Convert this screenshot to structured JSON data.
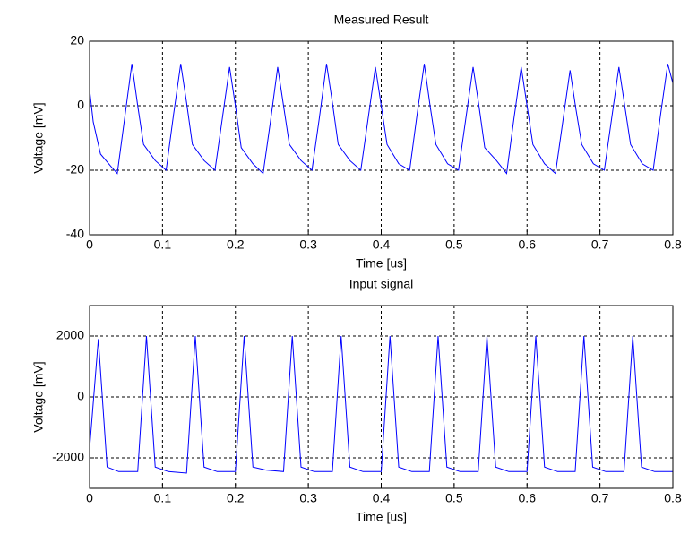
{
  "chart_data": [
    {
      "type": "line",
      "title": "Measured Result",
      "x_label": "Time [us]",
      "y_label": "Voltage [mV]",
      "color": "#0000ff",
      "grid": true,
      "xlim": [
        0,
        0.8
      ],
      "xticks": [
        0,
        0.1,
        0.2,
        0.3,
        0.4,
        0.5,
        0.6,
        0.7,
        0.8
      ],
      "ylim": [
        -40,
        20
      ],
      "yticks": [
        -40,
        -20,
        0,
        20
      ],
      "x": [
        0,
        0.005,
        0.015,
        0.03,
        0.038,
        0.048,
        0.058,
        0.066,
        0.074,
        0.09,
        0.105,
        0.115,
        0.125,
        0.133,
        0.141,
        0.157,
        0.172,
        0.182,
        0.192,
        0.2,
        0.208,
        0.224,
        0.238,
        0.248,
        0.258,
        0.266,
        0.274,
        0.29,
        0.305,
        0.315,
        0.325,
        0.333,
        0.341,
        0.357,
        0.372,
        0.382,
        0.392,
        0.4,
        0.408,
        0.424,
        0.439,
        0.449,
        0.459,
        0.467,
        0.475,
        0.491,
        0.506,
        0.516,
        0.526,
        0.534,
        0.542,
        0.558,
        0.572,
        0.582,
        0.592,
        0.6,
        0.608,
        0.624,
        0.639,
        0.649,
        0.659,
        0.667,
        0.675,
        0.691,
        0.706,
        0.716,
        0.726,
        0.734,
        0.742,
        0.758,
        0.773,
        0.783,
        0.793,
        0.8
      ],
      "values": [
        5,
        -5,
        -15,
        -19,
        -21,
        -4,
        13,
        0,
        -12,
        -17,
        -20,
        -3,
        13,
        1,
        -12,
        -17,
        -20,
        -4,
        12,
        0,
        -13,
        -18,
        -21,
        -5,
        12,
        0,
        -12,
        -17,
        -20,
        -4,
        13,
        1,
        -12,
        -17,
        -20,
        -4,
        12,
        0,
        -12,
        -18,
        -20,
        -3,
        13,
        0,
        -12,
        -18,
        -20,
        -4,
        12,
        0,
        -13,
        -17,
        -21,
        -4,
        12,
        0,
        -12,
        -18,
        -21,
        -5,
        11,
        -1,
        -12,
        -18,
        -20,
        -4,
        12,
        0,
        -12,
        -18,
        -20,
        -3,
        13,
        7
      ]
    },
    {
      "type": "line",
      "title": "Input signal",
      "x_label": "Time [us]",
      "y_label": "Voltage [mV]",
      "color": "#0000ff",
      "grid": true,
      "xlim": [
        0,
        0.8
      ],
      "xticks": [
        0,
        0.1,
        0.2,
        0.3,
        0.4,
        0.5,
        0.6,
        0.7,
        0.8
      ],
      "ylim": [
        -3000,
        3000
      ],
      "yticks": [
        -2000,
        0,
        2000
      ],
      "x": [
        0,
        0.012,
        0.024,
        0.04,
        0.066,
        0.078,
        0.09,
        0.108,
        0.133,
        0.145,
        0.157,
        0.175,
        0.2,
        0.212,
        0.224,
        0.242,
        0.266,
        0.278,
        0.29,
        0.308,
        0.333,
        0.345,
        0.357,
        0.375,
        0.4,
        0.412,
        0.424,
        0.442,
        0.466,
        0.478,
        0.49,
        0.508,
        0.533,
        0.545,
        0.557,
        0.575,
        0.6,
        0.612,
        0.624,
        0.642,
        0.666,
        0.678,
        0.69,
        0.708,
        0.733,
        0.745,
        0.757,
        0.775,
        0.8
      ],
      "values": [
        -1700,
        1900,
        -2300,
        -2450,
        -2450,
        2000,
        -2300,
        -2450,
        -2500,
        2000,
        -2300,
        -2450,
        -2450,
        2000,
        -2300,
        -2400,
        -2450,
        2000,
        -2300,
        -2450,
        -2450,
        2000,
        -2300,
        -2450,
        -2450,
        2000,
        -2300,
        -2450,
        -2450,
        2000,
        -2300,
        -2450,
        -2450,
        2000,
        -2300,
        -2450,
        -2450,
        2000,
        -2300,
        -2450,
        -2450,
        2000,
        -2300,
        -2450,
        -2450,
        2000,
        -2300,
        -2450,
        -2450
      ]
    }
  ]
}
